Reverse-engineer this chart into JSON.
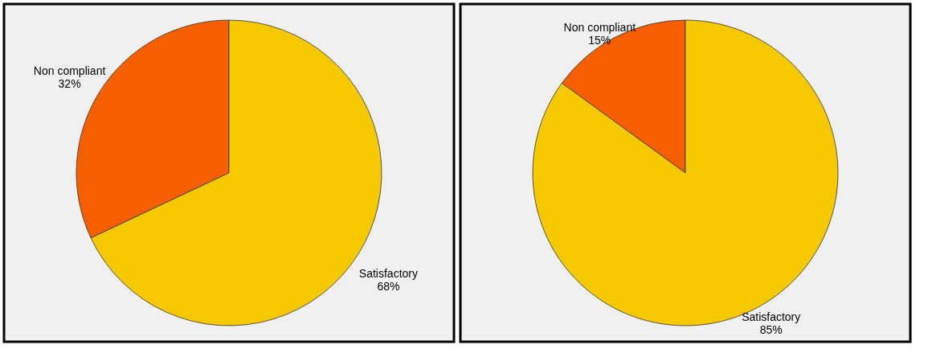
{
  "chart_data": [
    {
      "type": "pie",
      "categories": [
        "Non compliant",
        "Satisfactory"
      ],
      "values": [
        32,
        68
      ],
      "colors": [
        "#f55f00",
        "#f5c800"
      ],
      "value_labels": [
        "32%",
        "68%"
      ]
    },
    {
      "type": "pie",
      "categories": [
        "Non compliant",
        "Satisfactory"
      ],
      "values": [
        15,
        85
      ],
      "colors": [
        "#f55f00",
        "#f5c800"
      ],
      "value_labels": [
        "15%",
        "85%"
      ]
    }
  ]
}
